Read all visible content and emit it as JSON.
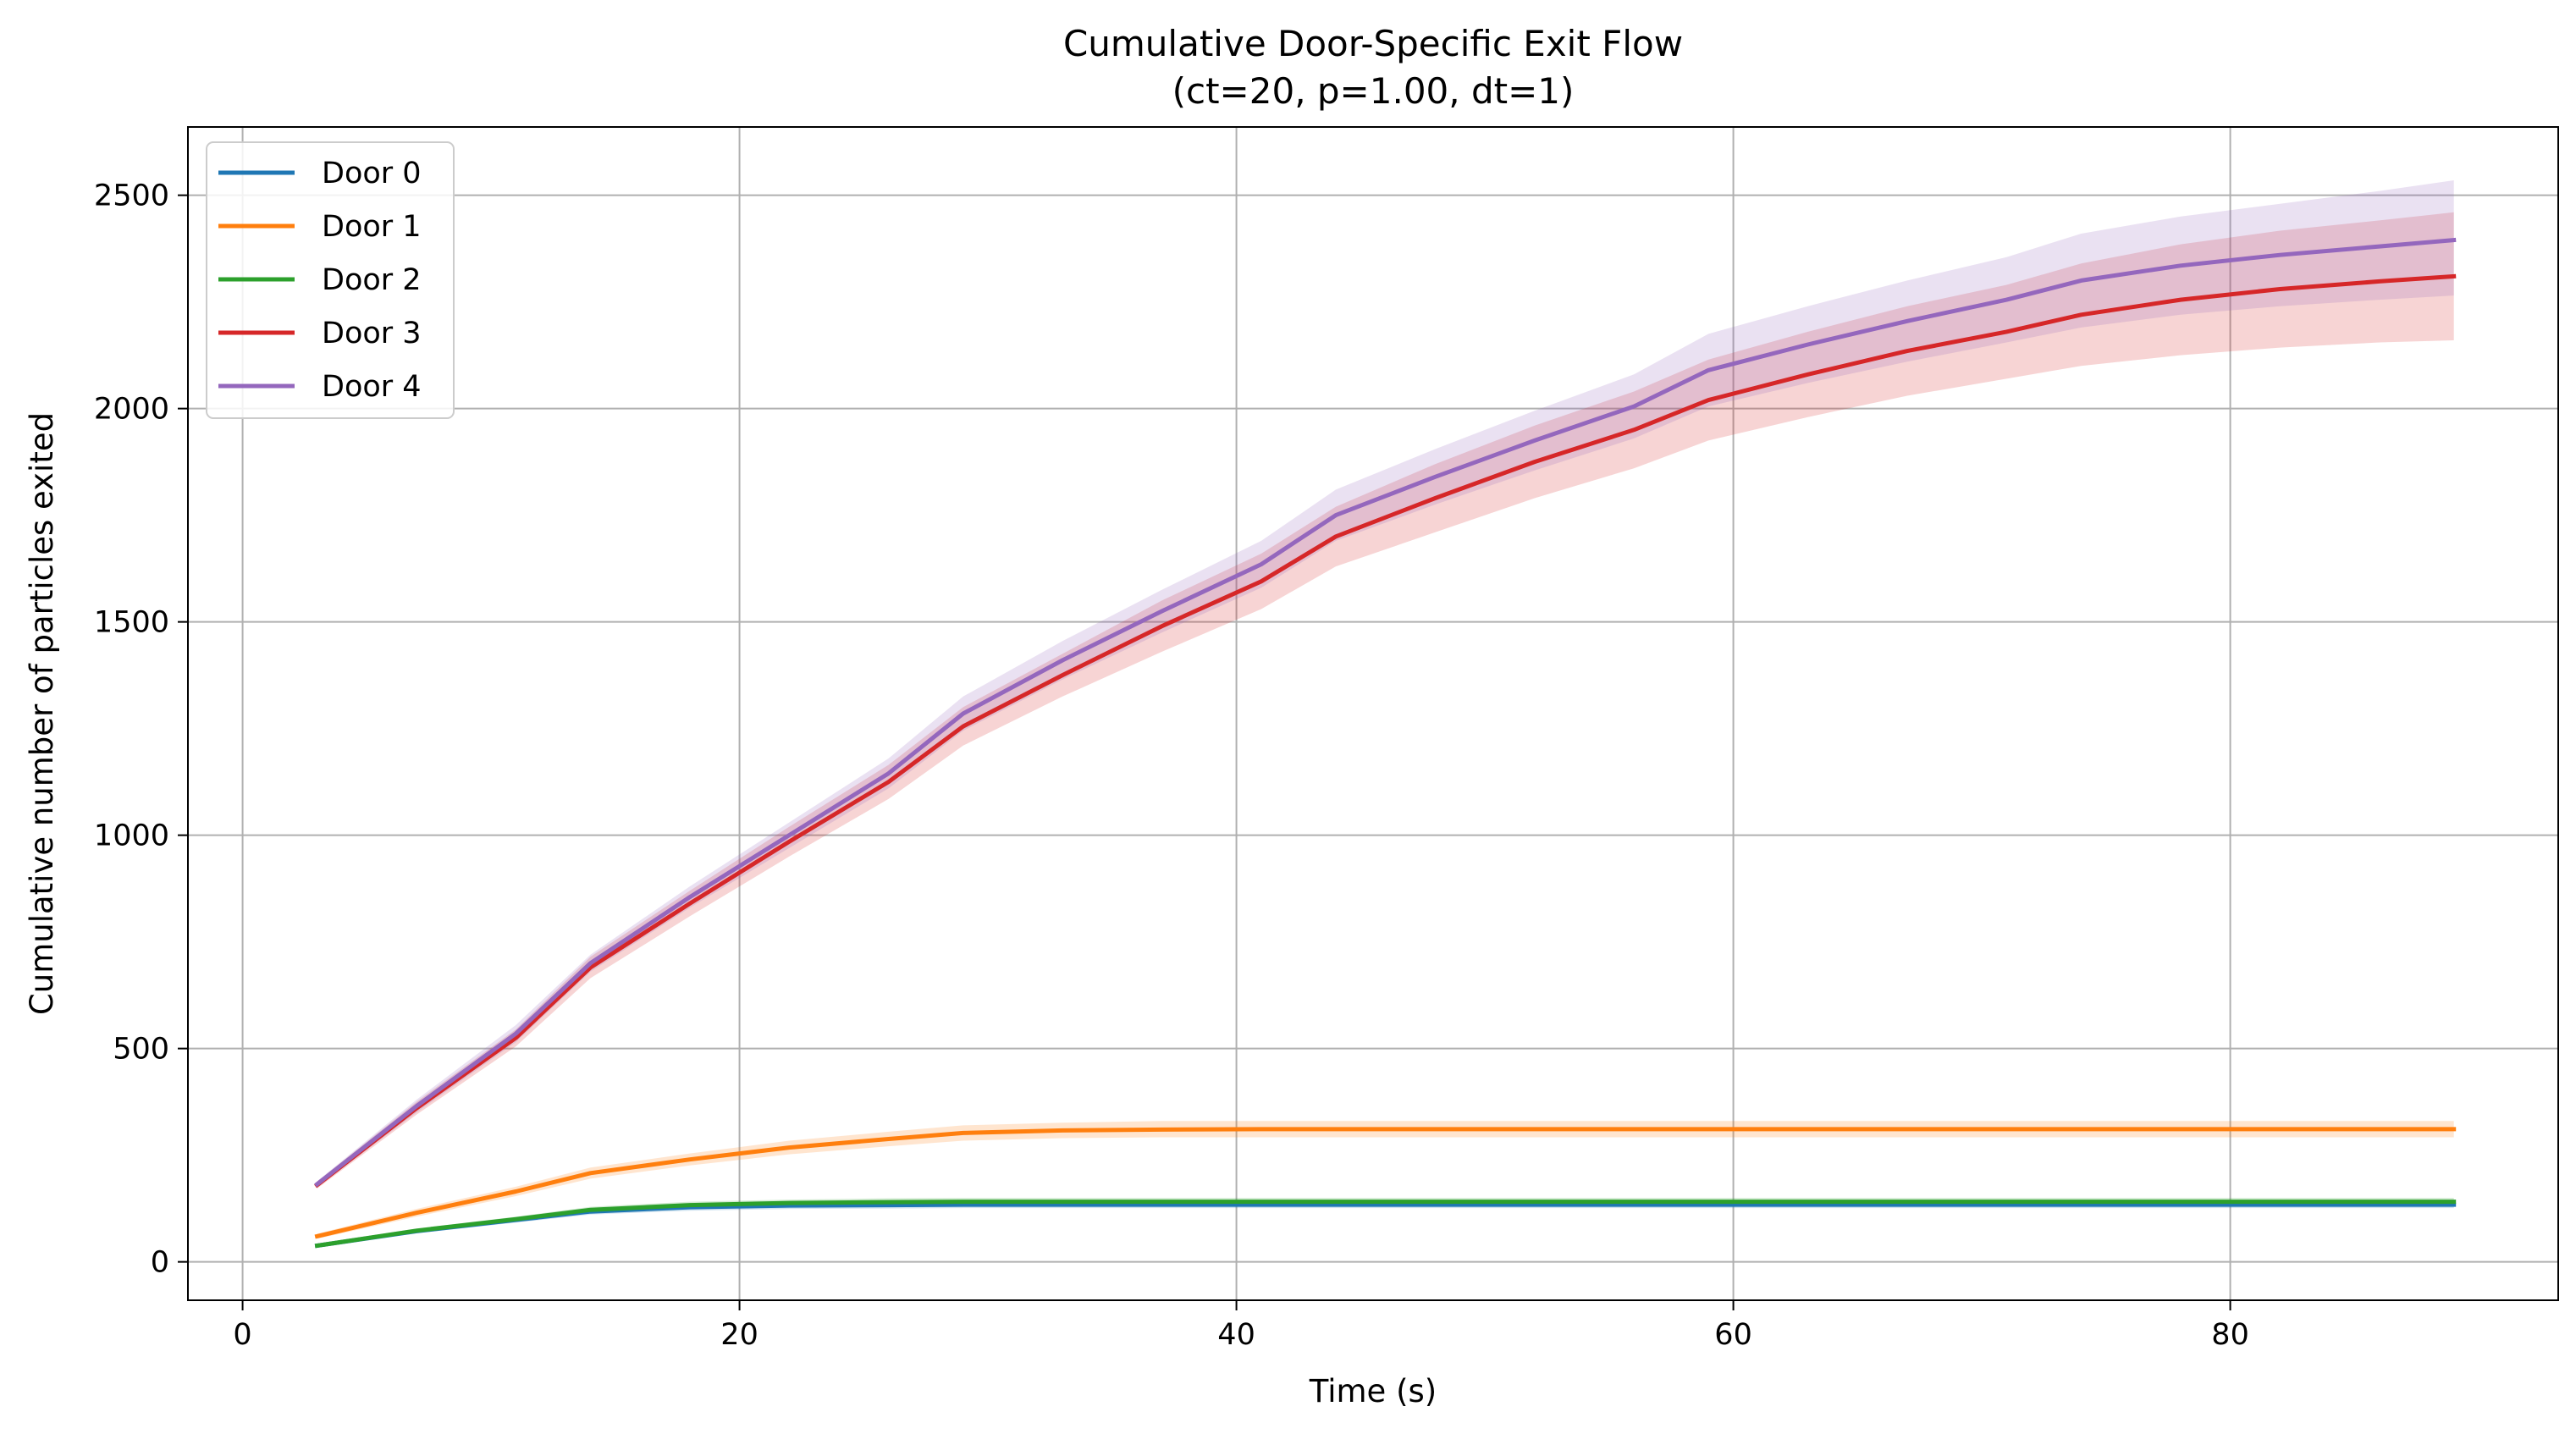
{
  "chart_data": {
    "type": "line",
    "title": "Cumulative Door-Specific Exit Flow",
    "subtitle": "(ct=20, p=1.00, dt=1)",
    "xlabel": "Time (s)",
    "ylabel": "Cumulative number of particles exited",
    "xlim": [
      -2.2,
      93.2
    ],
    "ylim": [
      -90,
      2660
    ],
    "xticks": [
      0,
      20,
      40,
      60,
      80
    ],
    "yticks": [
      0,
      500,
      1000,
      1500,
      2000,
      2500
    ],
    "grid": true,
    "legend_position": "top-left",
    "shaded_band": "around each series",
    "x": [
      3,
      7,
      11,
      14,
      18,
      22,
      26,
      29,
      33,
      37,
      41,
      44,
      48,
      52,
      56,
      59,
      63,
      67,
      71,
      74,
      78,
      82,
      86,
      89
    ],
    "series": [
      {
        "name": "Door 0",
        "color": "#1f77b4",
        "values": [
          38,
          72,
          98,
          118,
          128,
          132,
          133,
          134,
          134,
          134,
          134,
          134,
          134,
          134,
          134,
          134,
          134,
          134,
          134,
          134,
          134,
          134,
          134,
          134
        ],
        "lower": [
          34,
          67,
          92,
          111,
          120,
          124,
          125,
          126,
          126,
          126,
          126,
          126,
          126,
          126,
          126,
          126,
          126,
          126,
          126,
          126,
          126,
          126,
          126,
          126
        ],
        "upper": [
          42,
          77,
          104,
          125,
          136,
          140,
          141,
          142,
          142,
          142,
          142,
          142,
          142,
          142,
          142,
          142,
          142,
          142,
          142,
          142,
          142,
          142,
          142,
          142
        ]
      },
      {
        "name": "Door 1",
        "color": "#ff7f0e",
        "values": [
          60,
          115,
          165,
          208,
          240,
          268,
          288,
          302,
          308,
          310,
          311,
          311,
          311,
          311,
          311,
          311,
          311,
          311,
          311,
          311,
          311,
          311,
          311,
          311
        ],
        "lower": [
          54,
          106,
          154,
          195,
          226,
          252,
          271,
          284,
          290,
          292,
          292,
          292,
          292,
          292,
          292,
          292,
          292,
          292,
          292,
          292,
          292,
          292,
          292,
          292
        ],
        "upper": [
          66,
          124,
          176,
          221,
          254,
          284,
          305,
          320,
          326,
          330,
          330,
          330,
          330,
          330,
          330,
          330,
          330,
          330,
          330,
          330,
          330,
          330,
          330,
          330
        ]
      },
      {
        "name": "Door 2",
        "color": "#2ca02c",
        "values": [
          38,
          73,
          100,
          122,
          133,
          138,
          140,
          141,
          141,
          141,
          141,
          141,
          141,
          141,
          141,
          141,
          141,
          141,
          141,
          141,
          141,
          141,
          141,
          141
        ],
        "lower": [
          34,
          68,
          94,
          115,
          125,
          130,
          132,
          133,
          133,
          133,
          133,
          133,
          133,
          133,
          133,
          133,
          133,
          133,
          133,
          133,
          133,
          133,
          133,
          133
        ],
        "upper": [
          42,
          78,
          106,
          129,
          141,
          146,
          149,
          150,
          150,
          150,
          150,
          150,
          150,
          150,
          150,
          150,
          150,
          150,
          150,
          150,
          150,
          150,
          150,
          150
        ]
      },
      {
        "name": "Door 3",
        "color": "#d62728",
        "values": [
          180,
          360,
          525,
          690,
          840,
          985,
          1125,
          1255,
          1375,
          1490,
          1595,
          1700,
          1790,
          1875,
          1950,
          2020,
          2080,
          2135,
          2180,
          2220,
          2255,
          2280,
          2298,
          2310
        ],
        "lower": [
          172,
          345,
          505,
          665,
          810,
          950,
          1085,
          1210,
          1325,
          1430,
          1530,
          1630,
          1710,
          1790,
          1860,
          1925,
          1980,
          2030,
          2070,
          2100,
          2125,
          2143,
          2155,
          2160
        ],
        "upper": [
          188,
          375,
          545,
          715,
          870,
          1020,
          1165,
          1300,
          1425,
          1550,
          1660,
          1770,
          1870,
          1960,
          2040,
          2115,
          2180,
          2240,
          2290,
          2340,
          2385,
          2417,
          2441,
          2460
        ]
      },
      {
        "name": "Door 4",
        "color": "#9467bd",
        "values": [
          182,
          365,
          535,
          700,
          855,
          1000,
          1145,
          1285,
          1410,
          1525,
          1635,
          1750,
          1840,
          1925,
          2005,
          2090,
          2150,
          2205,
          2255,
          2300,
          2335,
          2360,
          2380,
          2395
        ],
        "lower": [
          175,
          350,
          515,
          680,
          830,
          970,
          1110,
          1245,
          1365,
          1475,
          1580,
          1690,
          1775,
          1855,
          1930,
          2005,
          2060,
          2110,
          2155,
          2190,
          2220,
          2240,
          2255,
          2265
        ],
        "upper": [
          189,
          380,
          555,
          720,
          880,
          1030,
          1180,
          1325,
          1455,
          1575,
          1690,
          1810,
          1905,
          1995,
          2080,
          2175,
          2240,
          2300,
          2355,
          2410,
          2450,
          2480,
          2510,
          2535
        ]
      }
    ]
  }
}
